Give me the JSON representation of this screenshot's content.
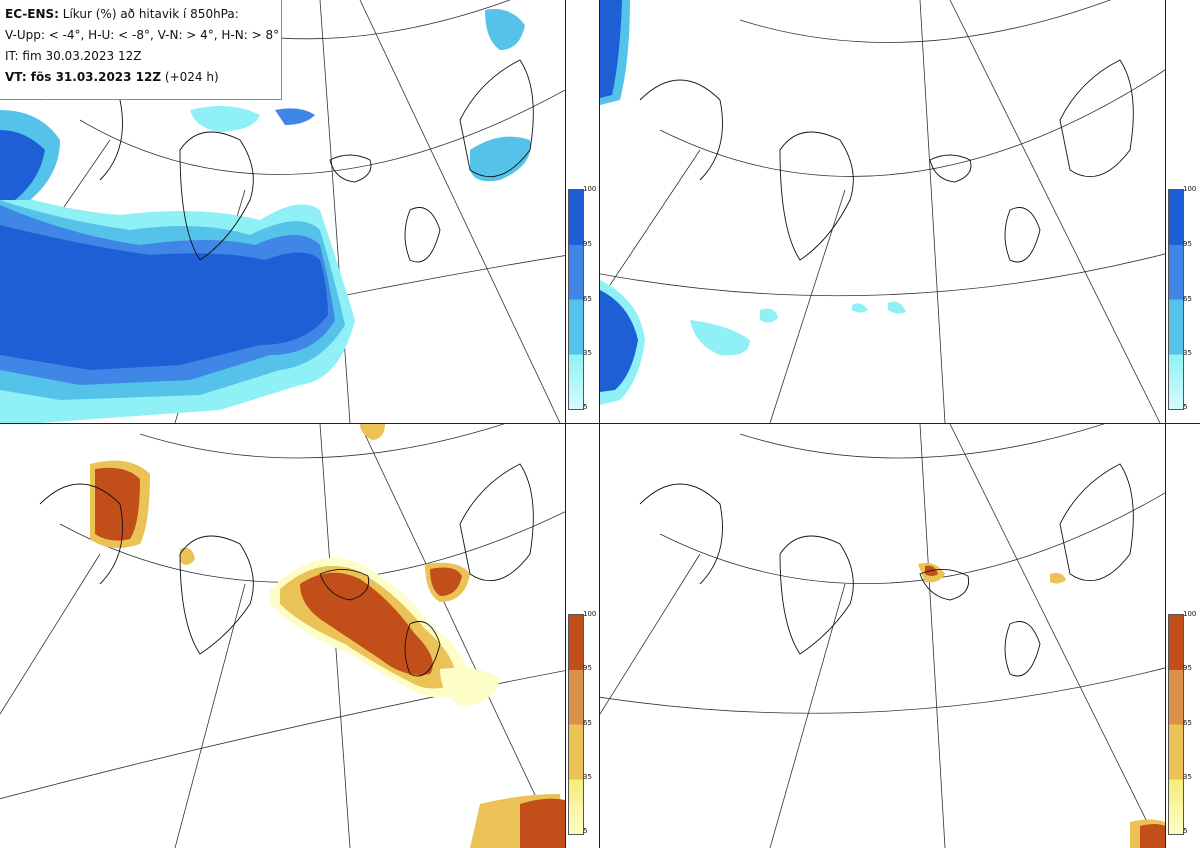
{
  "header": {
    "line1_bold": "EC-ENS:",
    "line1_rest": "Líkur (%) að hitavik í 850hPa:",
    "line2": "V-Upp: < -4°, H-U: < -8°, V-N: > 4°, H-N: > 8°",
    "line3": "IT: fim 30.03.2023 12Z",
    "line4_bold": "VT: fös 31.03.2023 12Z",
    "line4_rest": "(+024 h)"
  },
  "panels": [
    {
      "id": "V-Upp",
      "scheme": "cold"
    },
    {
      "id": "H-U",
      "scheme": "cold"
    },
    {
      "id": "V-N",
      "scheme": "warm"
    },
    {
      "id": "H-N",
      "scheme": "warm"
    }
  ],
  "colorbar": {
    "ticks": [
      "100",
      "95",
      "65",
      "35",
      "5"
    ],
    "cold_colors": [
      "#1f5fd6",
      "#3f86e6",
      "#55c2ea",
      "#8ff1f5",
      "#d4fdfd"
    ],
    "warm_colors": [
      "#c24e1a",
      "#d99247",
      "#ebc255",
      "#f6ed7a",
      "#fdfdc8"
    ]
  }
}
